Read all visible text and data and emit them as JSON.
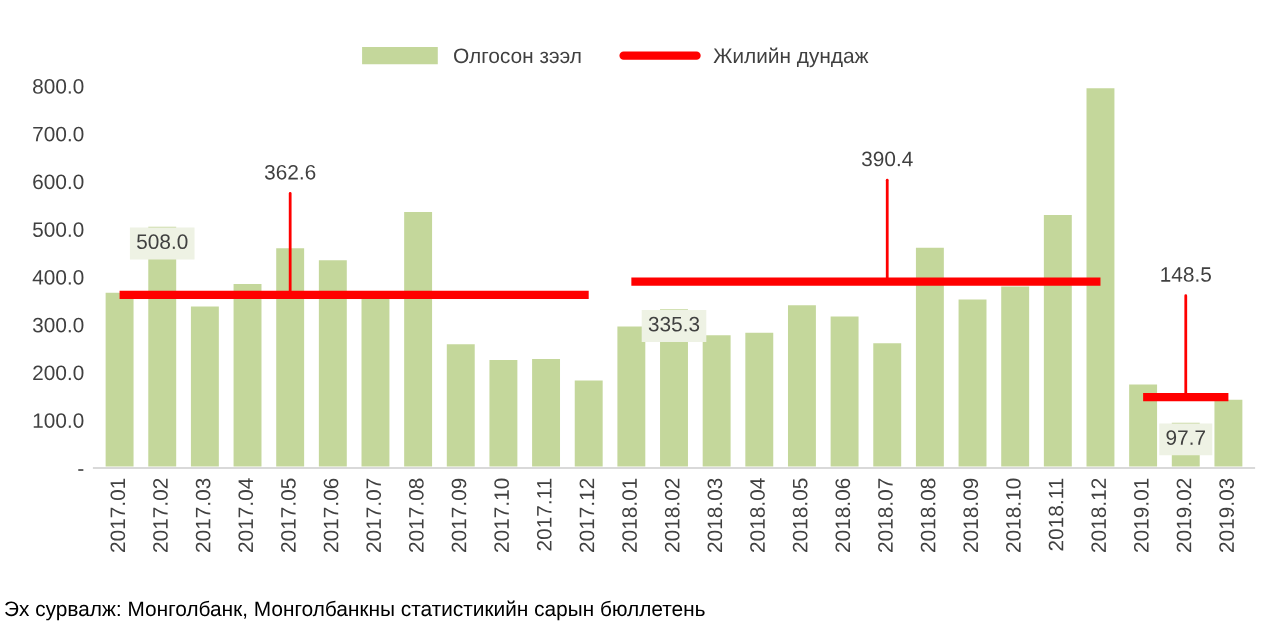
{
  "chart_data": {
    "type": "bar",
    "categories": [
      "2017.01",
      "2017.02",
      "2017.03",
      "2017.04",
      "2017.05",
      "2017.06",
      "2017.07",
      "2017.08",
      "2017.09",
      "2017.10",
      "2017.11",
      "2017.12",
      "2018.01",
      "2018.02",
      "2018.03",
      "2018.04",
      "2018.05",
      "2018.06",
      "2018.07",
      "2018.08",
      "2018.09",
      "2018.10",
      "2018.11",
      "2018.12",
      "2019.01",
      "2019.02",
      "2019.03"
    ],
    "series": [
      {
        "name": "Олгосон зээл",
        "color": "#c4d79b",
        "values": [
          370,
          508.0,
          341,
          388,
          463,
          438,
          360,
          539,
          262,
          229,
          231,
          186,
          299,
          335.3,
          281,
          286,
          344,
          320,
          264,
          464,
          356,
          383,
          533,
          798,
          178,
          97.7,
          146
        ],
        "value_labels": [
          null,
          "508.0",
          null,
          null,
          null,
          null,
          null,
          null,
          null,
          null,
          null,
          null,
          null,
          "335.3",
          null,
          null,
          null,
          null,
          null,
          null,
          null,
          null,
          null,
          null,
          null,
          "97.7",
          null
        ]
      },
      {
        "name": "Жилийн дундаж",
        "type": "line",
        "color": "#ff0000",
        "values": [
          362.6,
          362.6,
          362.6,
          362.6,
          362.6,
          362.6,
          362.6,
          362.6,
          362.6,
          362.6,
          362.6,
          362.6,
          null,
          null,
          null,
          null,
          null,
          null,
          null,
          null,
          null,
          null,
          null,
          null,
          null,
          null,
          null
        ]
      },
      {
        "type": "line",
        "color": "#ff0000",
        "values": [
          null,
          null,
          null,
          null,
          null,
          null,
          null,
          null,
          null,
          null,
          null,
          null,
          390.4,
          390.4,
          390.4,
          390.4,
          390.4,
          390.4,
          390.4,
          390.4,
          390.4,
          390.4,
          390.4,
          390.4,
          null,
          null,
          null
        ]
      },
      {
        "type": "line",
        "color": "#ff0000",
        "values": [
          null,
          null,
          null,
          null,
          null,
          null,
          null,
          null,
          null,
          null,
          null,
          null,
          null,
          null,
          null,
          null,
          null,
          null,
          null,
          null,
          null,
          null,
          null,
          null,
          148.5,
          148.5,
          148.5
        ]
      }
    ],
    "ylim": [
      0,
      800
    ],
    "yticks": [
      {
        "value": 0,
        "label": "-"
      },
      {
        "value": 100,
        "label": "100.0"
      },
      {
        "value": 200,
        "label": "200.0"
      },
      {
        "value": 300,
        "label": "300.0"
      },
      {
        "value": 400,
        "label": "400.0"
      },
      {
        "value": 500,
        "label": "500.0"
      },
      {
        "value": 600,
        "label": "600.0"
      },
      {
        "value": 700,
        "label": "700.0"
      },
      {
        "value": 800,
        "label": "800.0"
      }
    ],
    "annotations": [
      {
        "text": "362.6",
        "x": "2017.05",
        "y": 362.6
      },
      {
        "text": "390.4",
        "x": "2018.07",
        "y": 390.4
      },
      {
        "text": "148.5",
        "x": "2019.02",
        "y": 148.5
      },
      "Эх сурвалж: Монголбанк, Монголбанкны статистикийн сарын бюллетень"
    ],
    "legend": "top",
    "grid": false
  }
}
